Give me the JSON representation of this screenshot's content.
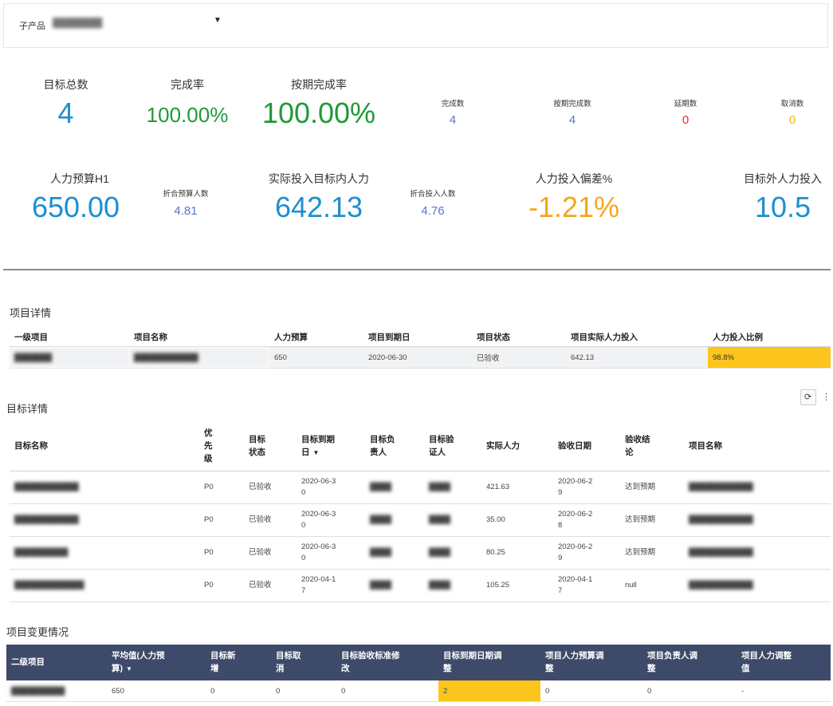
{
  "filter": {
    "label": "子产品",
    "value": "████████",
    "caret": "▼"
  },
  "kpis_top": {
    "target_total": {
      "label": "目标总数",
      "value": "4"
    },
    "completion_rate": {
      "label": "完成率",
      "value": "100.00%"
    },
    "on_time_rate": {
      "label": "按期完成率",
      "value": "100.00%"
    },
    "completed": {
      "label": "完成数",
      "value": "4"
    },
    "on_time_completed": {
      "label": "按期完成数",
      "value": "4"
    },
    "delayed": {
      "label": "延期数",
      "value": "0"
    },
    "cancelled": {
      "label": "取消数",
      "value": "0"
    }
  },
  "kpis_bottom": {
    "manpower_budget": {
      "label": "人力预算H1",
      "value": "650.00"
    },
    "converted_budget": {
      "label": "折合预算人数",
      "value": "4.81"
    },
    "actual_input": {
      "label": "实际投入目标内人力",
      "value": "642.13"
    },
    "converted_input": {
      "label": "折合投入人数",
      "value": "4.76"
    },
    "deviation": {
      "label": "人力投入偏差%",
      "value": "-1.21%"
    },
    "outside_input": {
      "label": "目标外人力投入",
      "value": "10.5"
    }
  },
  "project_details": {
    "title": "项目详情",
    "headers": [
      "一级项目",
      "项目名称",
      "人力预算",
      "项目到期日",
      "项目状态",
      "项目实际人力投入",
      "人力投入比例"
    ],
    "row": [
      "███████",
      "████████████",
      "650",
      "2020-06-30",
      "已验收",
      "642.13",
      "98.8%"
    ]
  },
  "target_details": {
    "title": "目标详情",
    "tools": {
      "refresh": "⟳",
      "more": "⋮"
    },
    "headers": [
      "目标名称",
      "优\n先\n级",
      "目标\n状态",
      "目标到期\n日",
      "目标负\n责人",
      "目标验\n证人",
      "实际人力",
      "验收日期",
      "验收结\n论",
      "项目名称"
    ],
    "sort_caret": "▼",
    "rows": [
      [
        "████████████",
        "P0",
        "已验收",
        "2020-06-3\n0",
        "████",
        "████",
        "421.63",
        "2020-06-2\n9",
        "达到预期",
        "████████████"
      ],
      [
        "████████████",
        "P0",
        "已验收",
        "2020-06-3\n0",
        "████",
        "████",
        "35.00",
        "2020-06-2\n8",
        "达到预期",
        "████████████"
      ],
      [
        "██████████",
        "P0",
        "已验收",
        "2020-06-3\n0",
        "████",
        "████",
        "80.25",
        "2020-06-2\n9",
        "达到预期",
        "████████████"
      ],
      [
        "█████████████",
        "P0",
        "已验收",
        "2020-04-1\n7",
        "████",
        "████",
        "105.25",
        "2020-04-1\n7",
        "null",
        "████████████"
      ]
    ]
  },
  "change_details": {
    "title": "项目变更情况",
    "headers": [
      "二级项目",
      "平均值(人力预\n算)",
      "目标新\n增",
      "目标取\n消",
      "目标验收标准修\n改",
      "目标到期日期调\n整",
      "项目人力预算调\n整",
      "项目负责人调\n整",
      "项目人力调整\n值"
    ],
    "sort_caret": "▼",
    "row": [
      "██████████",
      "650",
      "0",
      "0",
      "0",
      "2",
      "0",
      "0",
      "-"
    ]
  },
  "colors": {
    "blue": "#1d8fd0",
    "green": "#1f9a37",
    "periwinkle": "#5b73cf",
    "red": "#e0302b",
    "yellow": "#fbc51d",
    "header_navy": "#3d4a6a"
  }
}
